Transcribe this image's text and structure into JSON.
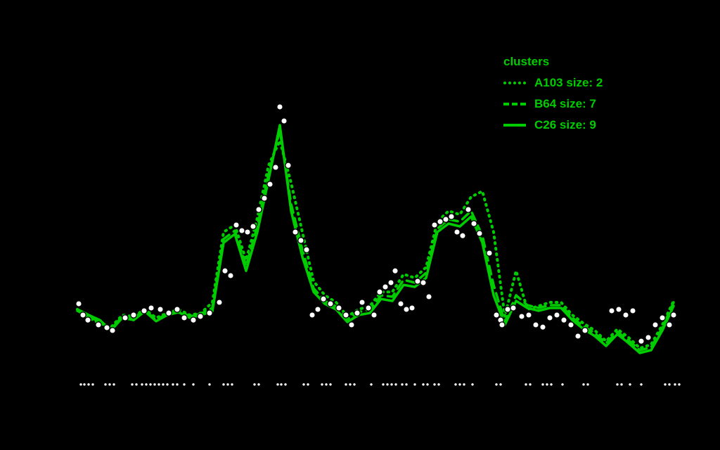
{
  "app": {
    "background_color": "#000000"
  },
  "legend": {
    "title": "clusters",
    "title_color": "#00cd00"
  },
  "chart_data": {
    "type": "line",
    "title": "",
    "xlabel": "",
    "ylabel": "",
    "grid": false,
    "legend_position": "top-right",
    "axes_labels_visible": false,
    "line_color": "#00cd00",
    "point_color": "#ffffff",
    "point_outline_color": "#000000",
    "x_step": 16,
    "x_range_units": [
      0,
      856
    ],
    "y_range_normalized": [
      0,
      1
    ],
    "series": [
      {
        "name": "A103",
        "legend_label": "A103 size: 2",
        "style": "dotted",
        "values": [
          0.275,
          0.245,
          0.225,
          0.212,
          0.255,
          0.25,
          0.275,
          0.245,
          0.262,
          0.275,
          0.255,
          0.262,
          0.3,
          0.55,
          0.575,
          0.45,
          0.6,
          0.787,
          0.875,
          0.725,
          0.55,
          0.375,
          0.325,
          0.3,
          0.25,
          0.275,
          0.287,
          0.337,
          0.337,
          0.4,
          0.387,
          0.425,
          0.587,
          0.625,
          0.612,
          0.675,
          0.695,
          0.55,
          0.25,
          0.412,
          0.275,
          0.287,
          0.3,
          0.3,
          0.255,
          0.225,
          0.2,
          0.162,
          0.205,
          0.175,
          0.137,
          0.15,
          0.22,
          0.305
        ]
      },
      {
        "name": "B64",
        "legend_label": "B64 size: 7",
        "style": "dashed",
        "values": [
          0.27,
          0.25,
          0.23,
          0.205,
          0.25,
          0.245,
          0.272,
          0.237,
          0.26,
          0.27,
          0.25,
          0.26,
          0.28,
          0.525,
          0.555,
          0.43,
          0.57,
          0.755,
          0.912,
          0.65,
          0.487,
          0.35,
          0.305,
          0.285,
          0.24,
          0.265,
          0.275,
          0.325,
          0.32,
          0.38,
          0.37,
          0.405,
          0.562,
          0.595,
          0.587,
          0.625,
          0.537,
          0.362,
          0.23,
          0.325,
          0.29,
          0.28,
          0.29,
          0.29,
          0.245,
          0.215,
          0.19,
          0.155,
          0.195,
          0.165,
          0.13,
          0.14,
          0.21,
          0.3
        ]
      },
      {
        "name": "C26",
        "legend_label": "C26 size: 9",
        "style": "solid",
        "values": [
          0.275,
          0.255,
          0.237,
          0.2,
          0.245,
          0.237,
          0.268,
          0.233,
          0.255,
          0.265,
          0.245,
          0.255,
          0.268,
          0.512,
          0.543,
          0.412,
          0.55,
          0.737,
          0.93,
          0.625,
          0.462,
          0.337,
          0.295,
          0.275,
          0.23,
          0.255,
          0.262,
          0.312,
          0.305,
          0.362,
          0.355,
          0.387,
          0.55,
          0.58,
          0.57,
          0.605,
          0.512,
          0.325,
          0.22,
          0.305,
          0.28,
          0.27,
          0.28,
          0.28,
          0.237,
          0.205,
          0.18,
          0.145,
          0.187,
          0.155,
          0.12,
          0.13,
          0.2,
          0.287
        ]
      }
    ],
    "points": [
      [
        2,
        0.295
      ],
      [
        8,
        0.255
      ],
      [
        15,
        0.237
      ],
      [
        30,
        0.22
      ],
      [
        42,
        0.21
      ],
      [
        50,
        0.2
      ],
      [
        68,
        0.245
      ],
      [
        80,
        0.255
      ],
      [
        95,
        0.27
      ],
      [
        105,
        0.28
      ],
      [
        118,
        0.275
      ],
      [
        130,
        0.262
      ],
      [
        142,
        0.275
      ],
      [
        152,
        0.245
      ],
      [
        165,
        0.237
      ],
      [
        175,
        0.25
      ],
      [
        188,
        0.262
      ],
      [
        202,
        0.3
      ],
      [
        210,
        0.412
      ],
      [
        218,
        0.395
      ],
      [
        226,
        0.575
      ],
      [
        234,
        0.555
      ],
      [
        242,
        0.55
      ],
      [
        250,
        0.57
      ],
      [
        258,
        0.63
      ],
      [
        266,
        0.67
      ],
      [
        274,
        0.72
      ],
      [
        282,
        0.78
      ],
      [
        288,
        0.995
      ],
      [
        294,
        0.945
      ],
      [
        300,
        0.787
      ],
      [
        310,
        0.55
      ],
      [
        318,
        0.52
      ],
      [
        326,
        0.487
      ],
      [
        334,
        0.255
      ],
      [
        342,
        0.275
      ],
      [
        350,
        0.312
      ],
      [
        360,
        0.295
      ],
      [
        372,
        0.28
      ],
      [
        382,
        0.255
      ],
      [
        390,
        0.22
      ],
      [
        398,
        0.262
      ],
      [
        405,
        0.3
      ],
      [
        414,
        0.28
      ],
      [
        422,
        0.255
      ],
      [
        430,
        0.337
      ],
      [
        438,
        0.355
      ],
      [
        446,
        0.37
      ],
      [
        452,
        0.412
      ],
      [
        460,
        0.295
      ],
      [
        468,
        0.275
      ],
      [
        476,
        0.28
      ],
      [
        484,
        0.375
      ],
      [
        492,
        0.37
      ],
      [
        500,
        0.32
      ],
      [
        508,
        0.575
      ],
      [
        516,
        0.587
      ],
      [
        524,
        0.595
      ],
      [
        532,
        0.605
      ],
      [
        540,
        0.55
      ],
      [
        548,
        0.537
      ],
      [
        556,
        0.63
      ],
      [
        564,
        0.58
      ],
      [
        572,
        0.545
      ],
      [
        586,
        0.475
      ],
      [
        596,
        0.255
      ],
      [
        602,
        0.237
      ],
      [
        604,
        0.22
      ],
      [
        612,
        0.275
      ],
      [
        620,
        0.28
      ],
      [
        632,
        0.25
      ],
      [
        642,
        0.255
      ],
      [
        652,
        0.22
      ],
      [
        662,
        0.212
      ],
      [
        672,
        0.245
      ],
      [
        682,
        0.255
      ],
      [
        692,
        0.237
      ],
      [
        702,
        0.22
      ],
      [
        712,
        0.18
      ],
      [
        722,
        0.2
      ],
      [
        760,
        0.27
      ],
      [
        770,
        0.275
      ],
      [
        780,
        0.255
      ],
      [
        790,
        0.27
      ],
      [
        802,
        0.162
      ],
      [
        812,
        0.175
      ],
      [
        822,
        0.22
      ],
      [
        832,
        0.245
      ],
      [
        842,
        0.22
      ],
      [
        848,
        0.255
      ]
    ],
    "rug": {
      "y_value": 0.008,
      "x_units": [
        5,
        10,
        16,
        22,
        40,
        46,
        52,
        78,
        84,
        92,
        98,
        104,
        110,
        116,
        122,
        128,
        136,
        142,
        152,
        165,
        188,
        208,
        214,
        220,
        252,
        258,
        285,
        290,
        296,
        322,
        328,
        348,
        354,
        360,
        382,
        388,
        394,
        418,
        435,
        441,
        447,
        453,
        462,
        468,
        480,
        492,
        498,
        508,
        514,
        538,
        544,
        550,
        562,
        596,
        602,
        638,
        644,
        662,
        668,
        674,
        690,
        720,
        726,
        768,
        774,
        786,
        802,
        836,
        842,
        850,
        856
      ]
    }
  }
}
